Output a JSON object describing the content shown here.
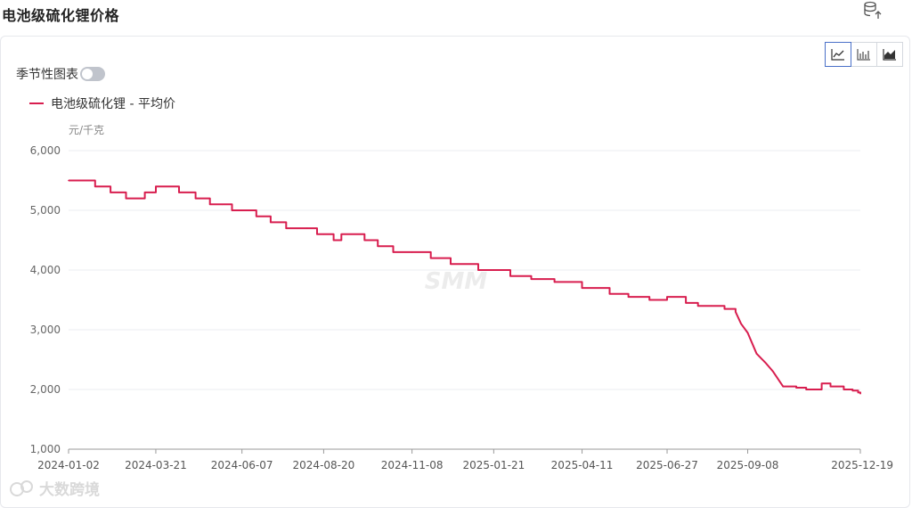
{
  "page": {
    "title": "电池级硫化锂价格"
  },
  "controls": {
    "seasonal_label": "季节性图表",
    "seasonal_on": false,
    "chart_types": [
      {
        "name": "line-chart-icon",
        "active": true
      },
      {
        "name": "bar-chart-icon",
        "active": false
      },
      {
        "name": "area-chart-icon",
        "active": false
      }
    ]
  },
  "watermark": {
    "center": "SMM",
    "corner": "大数跨境"
  },
  "colors": {
    "series": "#d81e4f",
    "grid": "#ebeef2",
    "axis": "#999999"
  },
  "chart_data": {
    "type": "line",
    "unit_label": "元/千克",
    "series_name": "电池级硫化锂 - 平均价",
    "ylim": [
      1000,
      6000
    ],
    "yticks": [
      "1,000",
      "2,000",
      "3,000",
      "4,000",
      "5,000",
      "6,000"
    ],
    "xticks": [
      "2024-01-02",
      "2024-03-21",
      "2024-06-07",
      "2024-08-20",
      "2024-11-08",
      "2025-01-21",
      "2025-04-11",
      "2025-06-27",
      "2025-09-08",
      "2025-12-19"
    ],
    "x": [
      "2024-01-02",
      "2024-01-26",
      "2024-02-09",
      "2024-02-23",
      "2024-03-11",
      "2024-03-18",
      "2024-03-21",
      "2024-04-11",
      "2024-04-26",
      "2024-05-09",
      "2024-05-20",
      "2024-05-29",
      "2024-06-07",
      "2024-06-20",
      "2024-07-03",
      "2024-07-17",
      "2024-08-05",
      "2024-08-14",
      "2024-08-20",
      "2024-08-29",
      "2024-09-05",
      "2024-09-26",
      "2024-10-08",
      "2024-10-22",
      "2024-11-08",
      "2024-11-25",
      "2024-12-13",
      "2025-01-07",
      "2025-01-21",
      "2025-02-05",
      "2025-02-24",
      "2025-03-17",
      "2025-04-11",
      "2025-05-06",
      "2025-05-23",
      "2025-06-11",
      "2025-06-27",
      "2025-07-14",
      "2025-07-25",
      "2025-08-06",
      "2025-08-18",
      "2025-08-28",
      "2025-09-02",
      "2025-09-08",
      "2025-09-16",
      "2025-09-24",
      "2025-10-01",
      "2025-10-10",
      "2025-10-22",
      "2025-10-31",
      "2025-11-07",
      "2025-11-14",
      "2025-11-22",
      "2025-11-27",
      "2025-12-04",
      "2025-12-12",
      "2025-12-17",
      "2025-12-19"
    ],
    "values": [
      5500,
      5400,
      5300,
      5200,
      5300,
      5300,
      5400,
      5300,
      5200,
      5100,
      5100,
      5000,
      5000,
      4900,
      4800,
      4700,
      4700,
      4600,
      4600,
      4500,
      4600,
      4500,
      4400,
      4300,
      4300,
      4200,
      4100,
      4000,
      4000,
      3900,
      3850,
      3800,
      3700,
      3600,
      3550,
      3500,
      3550,
      3450,
      3400,
      3400,
      3350,
      3300,
      3100,
      2950,
      2600,
      2450,
      2300,
      2050,
      2030,
      2000,
      2000,
      2100,
      2050,
      2050,
      2000,
      1980,
      1950,
      1930
    ]
  }
}
